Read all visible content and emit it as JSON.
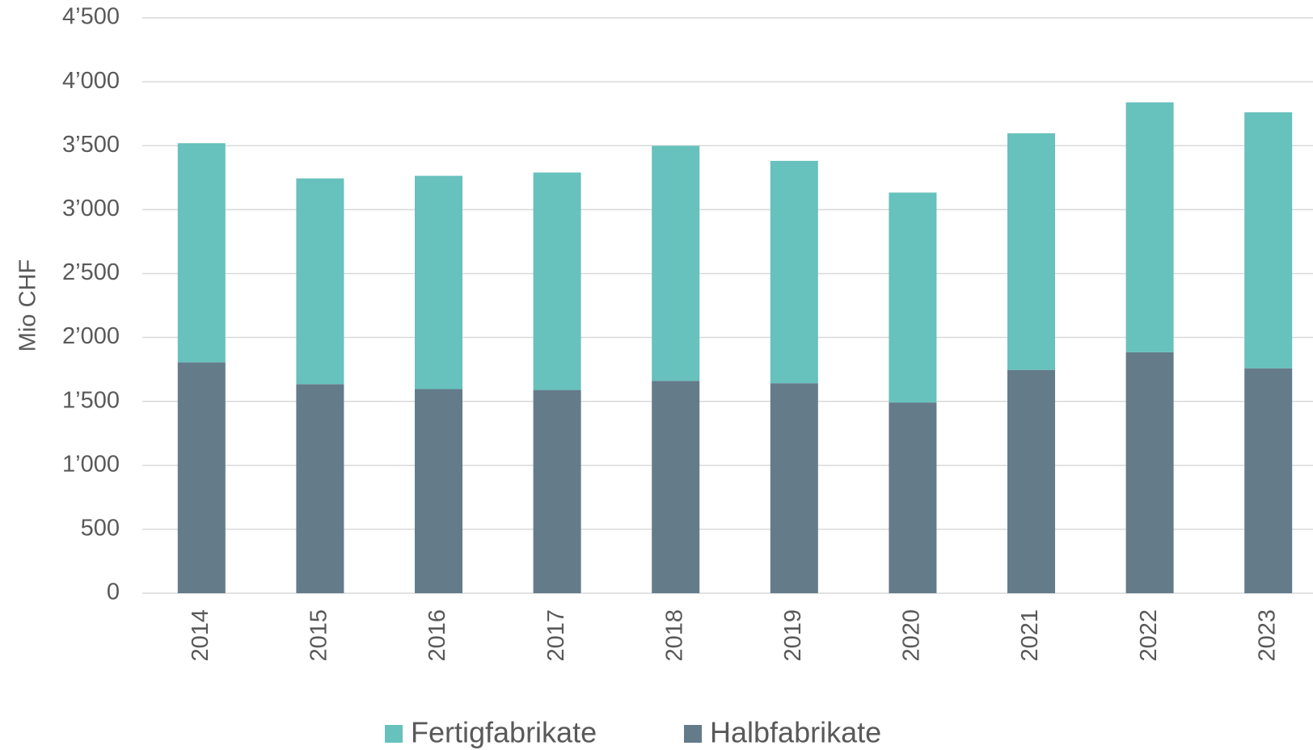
{
  "chart_data": {
    "type": "stacked_bar",
    "y_label": "Mio CHF",
    "categories": [
      "2014",
      "2015",
      "2016",
      "2017",
      "2018",
      "2019",
      "2020",
      "2021",
      "2022",
      "2023"
    ],
    "series": [
      {
        "name": "Fertigfabrikate",
        "color": "#67c1bd",
        "values": [
          1714,
          1609,
          1668,
          1701,
          1838,
          1739,
          1642,
          1851,
          1955,
          2002
        ]
      },
      {
        "name": "Halbfabrikate",
        "color": "#647b8a",
        "values": [
          1805,
          1635,
          1596,
          1589,
          1661,
          1642,
          1491,
          1746,
          1884,
          1759
        ]
      }
    ],
    "ylim": [
      0,
      4500
    ],
    "yticks": [
      0,
      500,
      {
        "value": 1000,
        "label": "1’000"
      },
      {
        "value": 1500,
        "label": "1’500"
      },
      {
        "value": 2000,
        "label": "2’000"
      },
      {
        "value": 2500,
        "label": "2’500"
      },
      {
        "value": 3000,
        "label": "3’000"
      },
      {
        "value": 3500,
        "label": "3’500"
      },
      {
        "value": 4000,
        "label": "4’000"
      },
      {
        "value": 4500,
        "label": "4’500"
      }
    ],
    "grid": true,
    "legend": "bottom"
  }
}
